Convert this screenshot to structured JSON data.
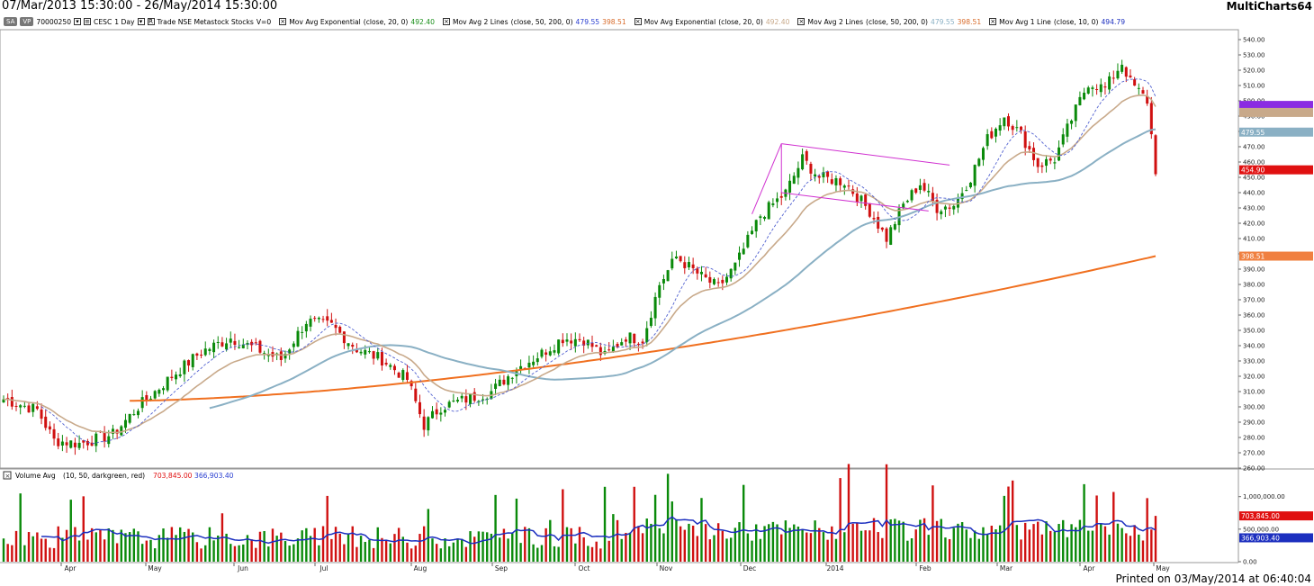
{
  "window": {
    "date_range": "07/Mar/2013 15:30:00 - 26/May/2014 15:30:00",
    "app_name": "MultiCharts64"
  },
  "symbol_bar": {
    "chip1": "SA",
    "chip2": "VP",
    "code": "70000250",
    "symbol": "CESC",
    "interval": "1 Day",
    "data_source": "Trade NSE Metastock Stocks",
    "volume_flag": "V=0",
    "studies": [
      {
        "name": "Mov Avg Exponential",
        "params": "(close, 20, 0)",
        "values": [
          "492.40"
        ],
        "colors": [
          "#1a8f1a"
        ]
      },
      {
        "name": "Mov Avg 2 Lines",
        "params": "(close, 50, 200, 0)",
        "values": [
          "479.55",
          "398.51"
        ],
        "colors": [
          "#2a3fd1",
          "#d86b2a"
        ]
      },
      {
        "name": "Mov Avg Exponential",
        "params": "(close, 20, 0)",
        "values": [
          "492.40"
        ],
        "colors": [
          "#c8a98a"
        ]
      },
      {
        "name": "Mov Avg 2 Lines",
        "params": "(close, 50, 200, 0)",
        "values": [
          "479.55",
          "398.51"
        ],
        "colors": [
          "#8ab0c4",
          "#d86b2a"
        ]
      },
      {
        "name": "Mov Avg 1 Line",
        "params": "(close, 10, 0)",
        "values": [
          "494.79"
        ],
        "colors": [
          "#1c2fbf"
        ]
      }
    ]
  },
  "volume_panel": {
    "name": "Volume Avg",
    "params": "(10, 50, darkgreen, red)",
    "value1": "703,845.00",
    "value2": "366,903.40"
  },
  "price_axis": {
    "min": 260,
    "max": 540,
    "step": 10,
    "labels": [
      "540.00",
      "530.00",
      "520.00",
      "510.00",
      "500.00",
      "490.00",
      "480.00",
      "470.00",
      "460.00",
      "450.00",
      "440.00",
      "430.00",
      "420.00",
      "410.00",
      "400.00",
      "390.00",
      "380.00",
      "370.00",
      "360.00",
      "350.00",
      "340.00",
      "330.00",
      "320.00",
      "310.00",
      "300.00",
      "290.00",
      "280.00",
      "270.00",
      "260.00"
    ]
  },
  "price_markers": [
    {
      "value": 497,
      "label": "",
      "color": "#8a2be2"
    },
    {
      "value": 492.4,
      "label": "",
      "color": "#c8a98a"
    },
    {
      "value": 479.55,
      "label": "479.55",
      "color": "#8ab0c4"
    },
    {
      "value": 454.9,
      "label": "454.90",
      "color": "#e01010"
    },
    {
      "value": 398.51,
      "label": "398.51",
      "color": "#f08040"
    }
  ],
  "volume_axis": {
    "labels": [
      "1,000,000.00",
      "500,000.00",
      "0.00"
    ],
    "values": [
      1000000,
      500000,
      0
    ]
  },
  "volume_markers": [
    {
      "value": 703845,
      "label": "703,845.00",
      "color": "#e01010"
    },
    {
      "value": 366903.4,
      "label": "366,903.40",
      "color": "#1c2fbf"
    }
  ],
  "time_axis": {
    "labels": [
      "Apr",
      "May",
      "Jun",
      "Jul",
      "Aug",
      "Sep",
      "Oct",
      "Nov",
      "Dec",
      "2014",
      "Feb",
      "Mar",
      "Apr",
      "May"
    ]
  },
  "footer": {
    "printed": "Printed on 03/May/2014 at 06:40:04"
  },
  "chart_data": {
    "type": "candlestick",
    "title": "",
    "xlabel": "",
    "ylabel": "",
    "ylim": [
      260,
      540
    ],
    "months": [
      "Apr",
      "May",
      "Jun",
      "Jul",
      "Aug",
      "Sep",
      "Oct",
      "Nov",
      "Dec",
      "2014",
      "Feb",
      "Mar",
      "Apr",
      "May"
    ],
    "close_anchors": [
      [
        0,
        305
      ],
      [
        8,
        298
      ],
      [
        12,
        278
      ],
      [
        18,
        276
      ],
      [
        26,
        282
      ],
      [
        32,
        300
      ],
      [
        40,
        320
      ],
      [
        47,
        336
      ],
      [
        54,
        345
      ],
      [
        60,
        338
      ],
      [
        66,
        331
      ],
      [
        72,
        356
      ],
      [
        78,
        353
      ],
      [
        84,
        338
      ],
      [
        90,
        331
      ],
      [
        96,
        318
      ],
      [
        100,
        288
      ],
      [
        104,
        300
      ],
      [
        110,
        305
      ],
      [
        116,
        310
      ],
      [
        122,
        325
      ],
      [
        128,
        335
      ],
      [
        133,
        345
      ],
      [
        138,
        344
      ],
      [
        143,
        333
      ],
      [
        148,
        346
      ],
      [
        152,
        344
      ],
      [
        156,
        380
      ],
      [
        160,
        398
      ],
      [
        166,
        385
      ],
      [
        170,
        378
      ],
      [
        174,
        392
      ],
      [
        180,
        425
      ],
      [
        186,
        440
      ],
      [
        190,
        462
      ],
      [
        194,
        450
      ],
      [
        200,
        447
      ],
      [
        206,
        428
      ],
      [
        210,
        410
      ],
      [
        214,
        432
      ],
      [
        218,
        446
      ],
      [
        222,
        430
      ],
      [
        226,
        432
      ],
      [
        230,
        450
      ],
      [
        234,
        475
      ],
      [
        238,
        490
      ],
      [
        242,
        478
      ],
      [
        246,
        458
      ],
      [
        250,
        462
      ],
      [
        254,
        488
      ],
      [
        258,
        512
      ],
      [
        262,
        508
      ],
      [
        266,
        525
      ],
      [
        268,
        512
      ],
      [
        272,
        500
      ],
      [
        274,
        455
      ]
    ],
    "volume_avg_10_approx": [
      320000,
      300000,
      280000,
      330000,
      300000,
      310000,
      290000,
      300000,
      280000,
      360000,
      370000,
      400000,
      380000,
      366903.4
    ]
  }
}
